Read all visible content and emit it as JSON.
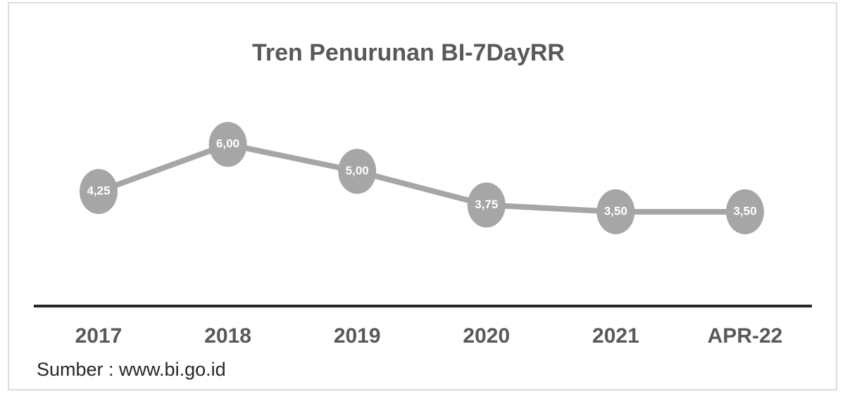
{
  "chart_data": {
    "type": "line",
    "title": "Tren Penurunan BI-7DayRR",
    "categories": [
      "2017",
      "2018",
      "2019",
      "2020",
      "2021",
      "APR-22"
    ],
    "values": [
      4.25,
      6.0,
      5.0,
      3.75,
      3.5,
      3.5
    ],
    "value_labels": [
      "4,25",
      "6,00",
      "5,00",
      "3,75",
      "3,50",
      "3,50"
    ],
    "color": "#a6a6a6",
    "source": "Sumber : www.bi.go.id"
  }
}
